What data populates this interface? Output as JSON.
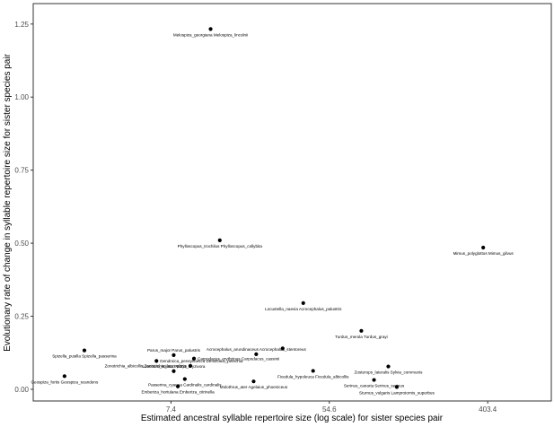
{
  "chart_data": {
    "type": "scatter",
    "xlabel": "Estimated ancestral syllable repertoire size (log scale) for sister species pair",
    "ylabel": "Evolutionary rate of change in syllable repertoire size for sister species pair",
    "x_scale": "log",
    "xlim": [
      1.3,
      900
    ],
    "ylim": [
      -0.04,
      1.32
    ],
    "x_ticks": [
      {
        "value": 7.4,
        "label": "7.4"
      },
      {
        "value": 54.6,
        "label": "54.6"
      },
      {
        "value": 403.4,
        "label": "403.4"
      }
    ],
    "y_ticks": [
      {
        "value": 0.0,
        "label": "0.00"
      },
      {
        "value": 0.25,
        "label": "0.25"
      },
      {
        "value": 0.5,
        "label": "0.50"
      },
      {
        "value": 0.75,
        "label": "0.75"
      },
      {
        "value": 1.0,
        "label": "1.00"
      },
      {
        "value": 1.25,
        "label": "1.25"
      }
    ],
    "grid": false,
    "points": [
      {
        "x": 12.2,
        "y": 1.233,
        "label": "Melospiza_georgiana Melospiza_lincolnii",
        "anchor": "middle",
        "below": true
      },
      {
        "x": 13.7,
        "y": 0.51,
        "label": "Phylloscopus_trochilus Phylloscopus_collybita",
        "anchor": "middle",
        "below": true
      },
      {
        "x": 381,
        "y": 0.485,
        "label": "Mimus_polyglottos Mimus_gilvus",
        "anchor": "middle",
        "below": true
      },
      {
        "x": 39.3,
        "y": 0.295,
        "label": "Locustella_naevia Acrocephalus_palustris",
        "anchor": "middle",
        "below": true
      },
      {
        "x": 81.8,
        "y": 0.2,
        "label": "Turdus_merula Turdus_grayi",
        "anchor": "middle",
        "below": true
      },
      {
        "x": 2.48,
        "y": 0.133,
        "label": "Spizella_pusilla Spizella_passerina",
        "anchor": "middle",
        "below": true
      },
      {
        "x": 7.66,
        "y": 0.117,
        "label": "Parus_major Parus_palustris",
        "anchor": "middle",
        "above": true
      },
      {
        "x": 6.16,
        "y": 0.097,
        "label": "Dendroica_pensylvanica Dendroica_petechia",
        "anchor": "start",
        "dx": 4
      },
      {
        "x": 9.89,
        "y": 0.105,
        "label": "Carpodacus_erythrinus Carpodacus_cassinii",
        "anchor": "start",
        "dx": 4
      },
      {
        "x": 21.7,
        "y": 0.12,
        "label": "Acrocephalus_arundinaceus Acrocephalus_stentoreus",
        "anchor": "middle",
        "above": true
      },
      {
        "x": 30.3,
        "y": 0.14,
        "label": "",
        "anchor": "middle"
      },
      {
        "x": 1.93,
        "y": 0.045,
        "label": "Geospiza_fortis Geospiza_scandens",
        "anchor": "middle",
        "below": true
      },
      {
        "x": 9.45,
        "y": 0.08,
        "label": "Zonotrichia_albicollis Zonotrichia_leucophrys",
        "anchor": "end",
        "dx": -4
      },
      {
        "x": 7.66,
        "y": 0.062,
        "label": "Lonchura_striata Padda_oryzivora",
        "anchor": "middle",
        "above": true
      },
      {
        "x": 8.81,
        "y": 0.035,
        "label": "Passerina_cyanea Cardinalis_cardinalis",
        "anchor": "middle",
        "below": true
      },
      {
        "x": 8.07,
        "y": 0.01,
        "label": "Emberiza_hortulana Emberiza_citrinella",
        "anchor": "middle",
        "below": true
      },
      {
        "x": 21.0,
        "y": 0.027,
        "label": "Molothrus_ater Agelaius_phoeniceus",
        "anchor": "middle",
        "below": true
      },
      {
        "x": 44.5,
        "y": 0.063,
        "label": "Ficedula_hypoleuca Ficedula_albicollis",
        "anchor": "middle",
        "below": true
      },
      {
        "x": 115,
        "y": 0.078,
        "label": "Zosterops_lateralis Sylvia_communis",
        "anchor": "middle",
        "below": true
      },
      {
        "x": 96,
        "y": 0.032,
        "label": "Serinus_canaria Serinus_serinus",
        "anchor": "middle",
        "below": true
      },
      {
        "x": 128,
        "y": 0.008,
        "label": "Sturnus_vulgaris Lamprotornis_superbus",
        "anchor": "middle",
        "below": true
      }
    ]
  }
}
